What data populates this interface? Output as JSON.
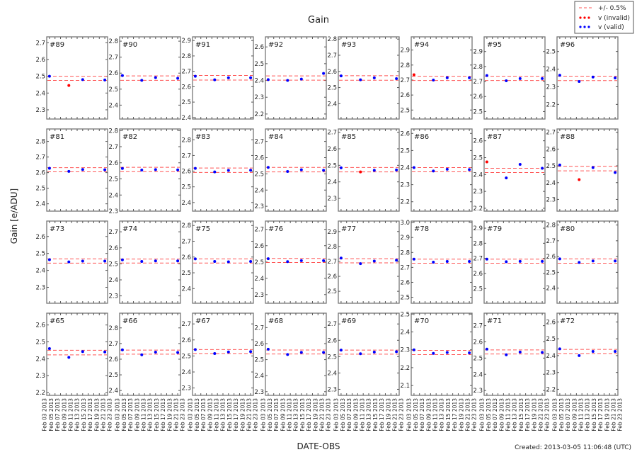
{
  "chart_data": {
    "type": "scatter",
    "title": "Gain",
    "xlabel": "DATE-OBS",
    "ylabel": "Gain [e/ADU]",
    "footer": "Created: 2013-03-05 11:06:48 (UTC)",
    "legend": {
      "placement": "top-right",
      "entries": [
        {
          "label": "+/- 0.5%",
          "color": "#ff5555",
          "style": "dashed"
        },
        {
          "label": "v (invalid)",
          "color": "#ff0000",
          "style": "dots"
        },
        {
          "label": "v (valid)",
          "color": "#0000ff",
          "style": "dots"
        }
      ]
    },
    "x_ticks": [
      "Feb 03 2013",
      "Feb 05 2013",
      "Feb 07 2013",
      "Feb 09 2013",
      "Feb 11 2013",
      "Feb 13 2013",
      "Feb 15 2013",
      "Feb 17 2013",
      "Feb 19 2013",
      "Feb 21 2013",
      "Feb 23 2013"
    ],
    "xlim": [
      "Feb 02 2013",
      "Feb 24 2013"
    ],
    "x": [
      "Feb 03 2013",
      "Feb 10 2013",
      "Feb 15 2013",
      "Feb 23 2013"
    ],
    "y_tick_step": 0.1,
    "grid": false,
    "panels": [
      {
        "label": "#89",
        "ylim": [
          2.245,
          2.735
        ],
        "values": [
          2.5,
          2.445,
          2.48,
          2.478
        ],
        "valid": [
          true,
          false,
          true,
          true
        ],
        "band": [
          2.475,
          2.5
        ]
      },
      {
        "label": "#90",
        "ylim": [
          2.313,
          2.827
        ],
        "values": [
          2.585,
          2.555,
          2.572,
          2.568
        ],
        "valid": [
          true,
          true,
          true,
          true
        ],
        "band": [
          2.555,
          2.583
        ]
      },
      {
        "label": "#91",
        "ylim": [
          2.39,
          2.924
        ],
        "values": [
          2.668,
          2.645,
          2.658,
          2.658
        ],
        "valid": [
          true,
          true,
          true,
          true
        ],
        "band": [
          2.643,
          2.673
        ]
      },
      {
        "label": "#92",
        "ylim": [
          2.17,
          2.66
        ],
        "values": [
          2.405,
          2.4,
          2.408,
          2.442
        ],
        "valid": [
          true,
          true,
          true,
          true
        ],
        "band": [
          2.402,
          2.427
        ]
      },
      {
        "label": "#93",
        "ylim": [
          2.305,
          2.814
        ],
        "values": [
          2.572,
          2.548,
          2.56,
          2.555
        ],
        "valid": [
          true,
          true,
          true,
          true
        ],
        "band": [
          2.545,
          2.573
        ]
      },
      {
        "label": "#94",
        "ylim": [
          2.44,
          2.988
        ],
        "values": [
          2.735,
          2.7,
          2.715,
          2.715
        ],
        "valid": [
          false,
          true,
          true,
          true
        ],
        "band": [
          2.697,
          2.725
        ]
      },
      {
        "label": "#95",
        "ylim": [
          2.45,
          2.998
        ],
        "values": [
          2.74,
          2.705,
          2.72,
          2.72
        ],
        "valid": [
          true,
          true,
          true,
          true
        ],
        "band": [
          2.707,
          2.735
        ]
      },
      {
        "label": "#96",
        "ylim": [
          2.117,
          2.583
        ],
        "values": [
          2.365,
          2.33,
          2.355,
          2.35
        ],
        "valid": [
          true,
          true,
          true,
          true
        ],
        "band": [
          2.335,
          2.36
        ]
      },
      {
        "label": "#81",
        "ylim": [
          2.353,
          2.88
        ],
        "values": [
          2.628,
          2.608,
          2.62,
          2.618
        ],
        "valid": [
          true,
          true,
          true,
          true
        ],
        "band": [
          2.605,
          2.632
        ]
      },
      {
        "label": "#82",
        "ylim": [
          2.3,
          2.81
        ],
        "values": [
          2.565,
          2.555,
          2.558,
          2.556
        ],
        "valid": [
          true,
          true,
          true,
          true
        ],
        "band": [
          2.545,
          2.572
        ]
      },
      {
        "label": "#83",
        "ylim": [
          2.345,
          2.869
        ],
        "values": [
          2.618,
          2.595,
          2.605,
          2.606
        ],
        "valid": [
          true,
          true,
          true,
          true
        ],
        "band": [
          2.592,
          2.62
        ]
      },
      {
        "label": "#84",
        "ylim": [
          2.27,
          2.777
        ],
        "values": [
          2.54,
          2.515,
          2.525,
          2.522
        ],
        "valid": [
          true,
          true,
          true,
          true
        ],
        "band": [
          2.512,
          2.54
        ]
      },
      {
        "label": "#85",
        "ylim": [
          2.223,
          2.72
        ],
        "values": [
          2.485,
          2.46,
          2.47,
          2.472
        ],
        "valid": [
          true,
          false,
          true,
          true
        ],
        "band": [
          2.46,
          2.487
        ]
      },
      {
        "label": "#86",
        "ylim": [
          2.145,
          2.626
        ],
        "values": [
          2.4,
          2.38,
          2.39,
          2.388
        ],
        "valid": [
          true,
          true,
          true,
          true
        ],
        "band": [
          2.375,
          2.4
        ]
      },
      {
        "label": "#87",
        "ylim": [
          2.183,
          2.67
        ],
        "values": [
          2.475,
          2.38,
          2.46,
          2.437
        ],
        "valid": [
          false,
          true,
          true,
          true
        ],
        "band": [
          2.412,
          2.437
        ]
      },
      {
        "label": "#88",
        "ylim": [
          2.23,
          2.72
        ],
        "values": [
          2.505,
          2.418,
          2.49,
          2.46
        ],
        "valid": [
          true,
          false,
          true,
          true
        ],
        "band": [
          2.47,
          2.497
        ]
      },
      {
        "label": "#73",
        "ylim": [
          2.206,
          2.691
        ],
        "values": [
          2.463,
          2.45,
          2.455,
          2.455
        ],
        "valid": [
          true,
          true,
          true,
          true
        ],
        "band": [
          2.443,
          2.468
        ]
      },
      {
        "label": "#74",
        "ylim": [
          2.254,
          2.767
        ],
        "values": [
          2.525,
          2.515,
          2.518,
          2.518
        ],
        "valid": [
          true,
          true,
          true,
          true
        ],
        "band": [
          2.505,
          2.53
        ]
      },
      {
        "label": "#75",
        "ylim": [
          2.307,
          2.828
        ],
        "values": [
          2.588,
          2.572,
          2.57,
          2.572
        ],
        "valid": [
          true,
          true,
          true,
          true
        ],
        "band": [
          2.562,
          2.588
        ]
      },
      {
        "label": "#76",
        "ylim": [
          2.247,
          2.751
        ],
        "values": [
          2.52,
          2.502,
          2.508,
          2.508
        ],
        "valid": [
          true,
          true,
          true,
          true
        ],
        "band": [
          2.497,
          2.522
        ]
      },
      {
        "label": "#77",
        "ylim": [
          2.42,
          2.97
        ],
        "values": [
          2.722,
          2.685,
          2.702,
          2.708
        ],
        "valid": [
          true,
          true,
          true,
          true
        ],
        "band": [
          2.69,
          2.718
        ]
      },
      {
        "label": "#78",
        "ylim": [
          2.46,
          3.01
        ],
        "values": [
          2.755,
          2.735,
          2.74,
          2.74
        ],
        "valid": [
          true,
          true,
          true,
          true
        ],
        "band": [
          2.728,
          2.755
        ]
      },
      {
        "label": "#79",
        "ylim": [
          2.403,
          2.947
        ],
        "values": [
          2.695,
          2.678,
          2.68,
          2.68
        ],
        "valid": [
          true,
          true,
          true,
          true
        ],
        "band": [
          2.668,
          2.695
        ]
      },
      {
        "label": "#80",
        "ylim": [
          2.304,
          2.825
        ],
        "values": [
          2.585,
          2.563,
          2.572,
          2.572
        ],
        "valid": [
          true,
          true,
          true,
          true
        ],
        "band": [
          2.558,
          2.585
        ]
      },
      {
        "label": "#65",
        "ylim": [
          2.183,
          2.67
        ],
        "values": [
          2.46,
          2.408,
          2.442,
          2.44
        ],
        "valid": [
          true,
          true,
          true,
          true
        ],
        "band": [
          2.423,
          2.45
        ]
      },
      {
        "label": "#66",
        "ylim": [
          2.369,
          2.894
        ],
        "values": [
          2.66,
          2.628,
          2.645,
          2.643
        ],
        "valid": [
          true,
          true,
          true,
          true
        ],
        "band": [
          2.632,
          2.658
        ]
      },
      {
        "label": "#67",
        "ylim": [
          2.254,
          2.767
        ],
        "values": [
          2.54,
          2.515,
          2.525,
          2.527
        ],
        "valid": [
          true,
          true,
          true,
          true
        ],
        "band": [
          2.515,
          2.54
        ]
      },
      {
        "label": "#68",
        "ylim": [
          2.277,
          2.79
        ],
        "values": [
          2.565,
          2.532,
          2.545,
          2.545
        ],
        "valid": [
          true,
          true,
          true,
          true
        ],
        "band": [
          2.535,
          2.56
        ]
      },
      {
        "label": "#69",
        "ylim": [
          2.263,
          2.766
        ],
        "values": [
          2.54,
          2.518,
          2.528,
          2.53
        ],
        "valid": [
          true,
          true,
          true,
          true
        ],
        "band": [
          2.515,
          2.54
        ]
      },
      {
        "label": "#70",
        "ylim": [
          2.045,
          2.505
        ],
        "values": [
          2.3,
          2.28,
          2.285,
          2.283
        ],
        "valid": [
          true,
          true,
          true,
          true
        ],
        "band": [
          2.273,
          2.297
        ]
      },
      {
        "label": "#71",
        "ylim": [
          2.27,
          2.777
        ],
        "values": [
          2.555,
          2.52,
          2.537,
          2.535
        ],
        "valid": [
          true,
          true,
          true,
          true
        ],
        "band": [
          2.525,
          2.55
        ]
      },
      {
        "label": "#72",
        "ylim": [
          2.164,
          2.652
        ],
        "values": [
          2.44,
          2.4,
          2.425,
          2.425
        ],
        "valid": [
          true,
          true,
          true,
          true
        ],
        "band": [
          2.412,
          2.437
        ]
      }
    ]
  }
}
